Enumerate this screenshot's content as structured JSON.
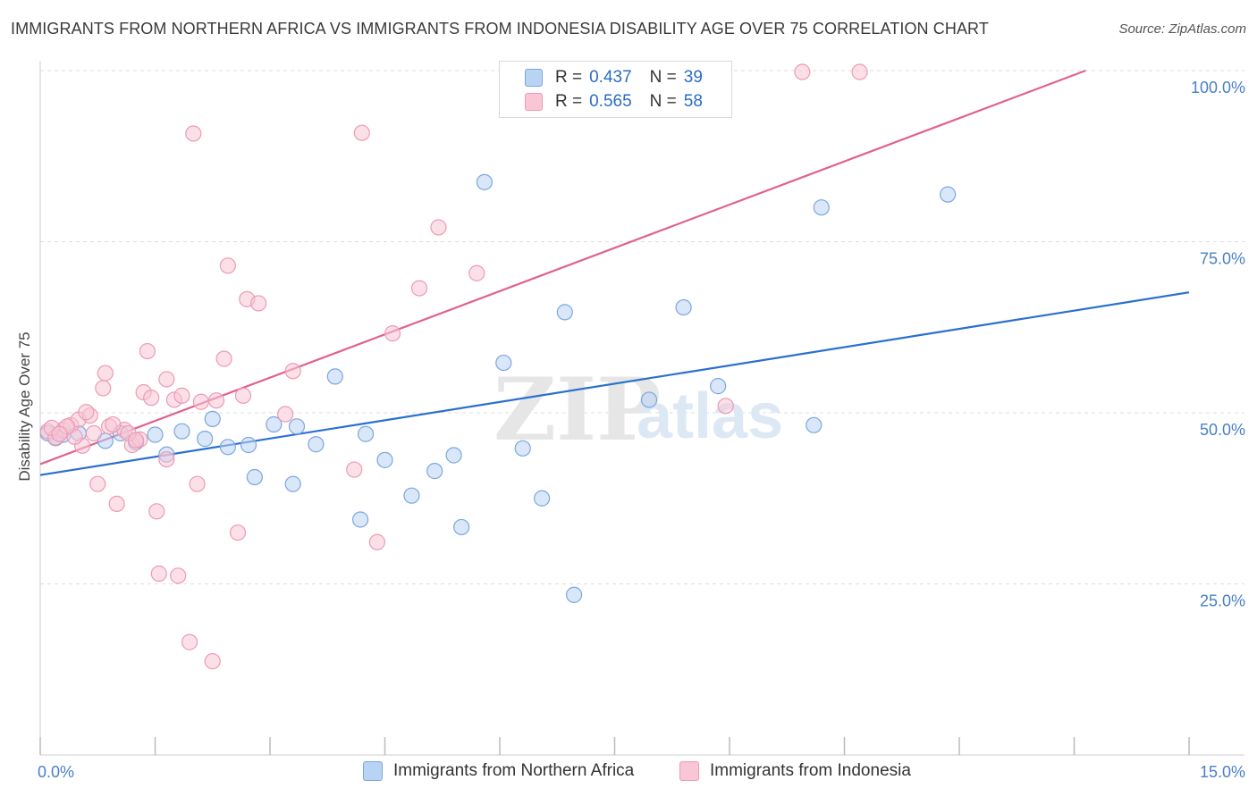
{
  "header": {
    "title": "IMMIGRANTS FROM NORTHERN AFRICA VS IMMIGRANTS FROM INDONESIA DISABILITY AGE OVER 75 CORRELATION CHART",
    "source": "Source: ZipAtlas.com"
  },
  "watermark": {
    "zip": "ZIP",
    "atlas": "atlas"
  },
  "legend": {
    "r_label": "R =",
    "n_label": "N =",
    "series1": {
      "r": "0.437",
      "n": "39"
    },
    "series2": {
      "r": "0.565",
      "n": "58"
    }
  },
  "colors": {
    "series1_fill": "#b9d3f3",
    "series1_stroke": "#7aa7e0",
    "series1_line": "#2a6fd0",
    "series2_fill": "#f8c6d5",
    "series2_stroke": "#ee9ab4",
    "series2_line": "#e0628e",
    "tick_label": "#4a7fc8",
    "grid": "#dddddd"
  },
  "chart_data": {
    "type": "scatter",
    "title": "IMMIGRANTS FROM NORTHERN AFRICA VS IMMIGRANTS FROM INDONESIA DISABILITY AGE OVER 75 CORRELATION CHART",
    "xlabel": "",
    "ylabel": "Disability Age Over 75",
    "xlim": [
      0,
      15
    ],
    "ylim": [
      0,
      100
    ],
    "x_tick_labels": [
      "0.0%",
      "15.0%"
    ],
    "y_ticks": [
      25,
      50,
      75,
      100
    ],
    "y_tick_labels": [
      "25.0%",
      "50.0%",
      "75.0%",
      "100.0%"
    ],
    "grid": true,
    "legend_position": "top-center",
    "series": [
      {
        "name": "Immigrants from Northern Africa",
        "r": 0.437,
        "n": 39,
        "trend": {
          "x": [
            0,
            15
          ],
          "y": [
            40.9,
            67.6
          ]
        },
        "points": [
          [
            0.1,
            47.0
          ],
          [
            0.2,
            46.3
          ],
          [
            0.3,
            46.8
          ],
          [
            0.5,
            47.0
          ],
          [
            0.85,
            45.9
          ],
          [
            1.05,
            47.0
          ],
          [
            1.25,
            45.7
          ],
          [
            1.5,
            46.8
          ],
          [
            1.65,
            43.9
          ],
          [
            1.85,
            47.3
          ],
          [
            2.15,
            46.2
          ],
          [
            2.25,
            49.1
          ],
          [
            2.45,
            45.0
          ],
          [
            2.72,
            45.3
          ],
          [
            2.8,
            40.6
          ],
          [
            3.05,
            48.3
          ],
          [
            3.35,
            48.0
          ],
          [
            3.3,
            39.6
          ],
          [
            3.6,
            45.4
          ],
          [
            3.85,
            55.3
          ],
          [
            4.18,
            34.4
          ],
          [
            4.25,
            46.9
          ],
          [
            4.5,
            43.1
          ],
          [
            4.85,
            37.9
          ],
          [
            5.15,
            41.5
          ],
          [
            5.4,
            43.8
          ],
          [
            5.5,
            33.3
          ],
          [
            5.8,
            83.7
          ],
          [
            6.05,
            57.3
          ],
          [
            6.3,
            44.8
          ],
          [
            6.55,
            37.5
          ],
          [
            6.85,
            64.7
          ],
          [
            6.97,
            23.4
          ],
          [
            7.95,
            51.9
          ],
          [
            8.4,
            65.4
          ],
          [
            8.85,
            53.9
          ],
          [
            10.1,
            48.2
          ],
          [
            10.2,
            80.0
          ],
          [
            11.85,
            81.9
          ]
        ]
      },
      {
        "name": "Immigrants from Indonesia",
        "r": 0.565,
        "n": 58,
        "trend": {
          "x": [
            0,
            13.65
          ],
          "y": [
            42.5,
            100
          ]
        },
        "points": [
          [
            0.1,
            47.3
          ],
          [
            0.2,
            46.4
          ],
          [
            0.3,
            47.5
          ],
          [
            0.4,
            48.2
          ],
          [
            0.5,
            49.0
          ],
          [
            0.55,
            45.2
          ],
          [
            0.65,
            49.6
          ],
          [
            0.7,
            47.0
          ],
          [
            0.75,
            39.6
          ],
          [
            0.82,
            53.6
          ],
          [
            0.85,
            55.8
          ],
          [
            0.9,
            48.0
          ],
          [
            1.0,
            36.7
          ],
          [
            1.1,
            47.5
          ],
          [
            1.2,
            45.3
          ],
          [
            1.3,
            46.1
          ],
          [
            1.35,
            53.0
          ],
          [
            1.4,
            59.0
          ],
          [
            1.45,
            52.2
          ],
          [
            1.52,
            35.6
          ],
          [
            1.55,
            26.5
          ],
          [
            1.65,
            43.2
          ],
          [
            1.65,
            54.9
          ],
          [
            1.75,
            51.9
          ],
          [
            1.8,
            26.2
          ],
          [
            1.85,
            52.5
          ],
          [
            1.95,
            16.5
          ],
          [
            2.0,
            90.8
          ],
          [
            2.05,
            39.6
          ],
          [
            2.1,
            51.6
          ],
          [
            2.25,
            13.7
          ],
          [
            2.3,
            51.8
          ],
          [
            2.4,
            57.9
          ],
          [
            2.45,
            71.5
          ],
          [
            2.58,
            32.5
          ],
          [
            2.65,
            52.5
          ],
          [
            2.7,
            66.6
          ],
          [
            2.85,
            66.0
          ],
          [
            3.2,
            49.8
          ],
          [
            3.3,
            56.1
          ],
          [
            4.1,
            41.7
          ],
          [
            4.2,
            90.9
          ],
          [
            4.4,
            31.1
          ],
          [
            4.6,
            61.6
          ],
          [
            4.95,
            68.2
          ],
          [
            5.2,
            77.1
          ],
          [
            5.7,
            70.4
          ],
          [
            8.95,
            51.0
          ],
          [
            9.95,
            99.8
          ],
          [
            10.7,
            99.8
          ],
          [
            0.15,
            47.8
          ],
          [
            0.45,
            46.5
          ],
          [
            0.95,
            48.3
          ],
          [
            1.15,
            47.0
          ],
          [
            0.6,
            50.1
          ],
          [
            1.25,
            46.0
          ],
          [
            0.35,
            48.0
          ],
          [
            0.25,
            46.9
          ]
        ]
      }
    ]
  },
  "bottom_legend": {
    "series1": "Immigrants from Northern Africa",
    "series2": "Immigrants from Indonesia"
  }
}
